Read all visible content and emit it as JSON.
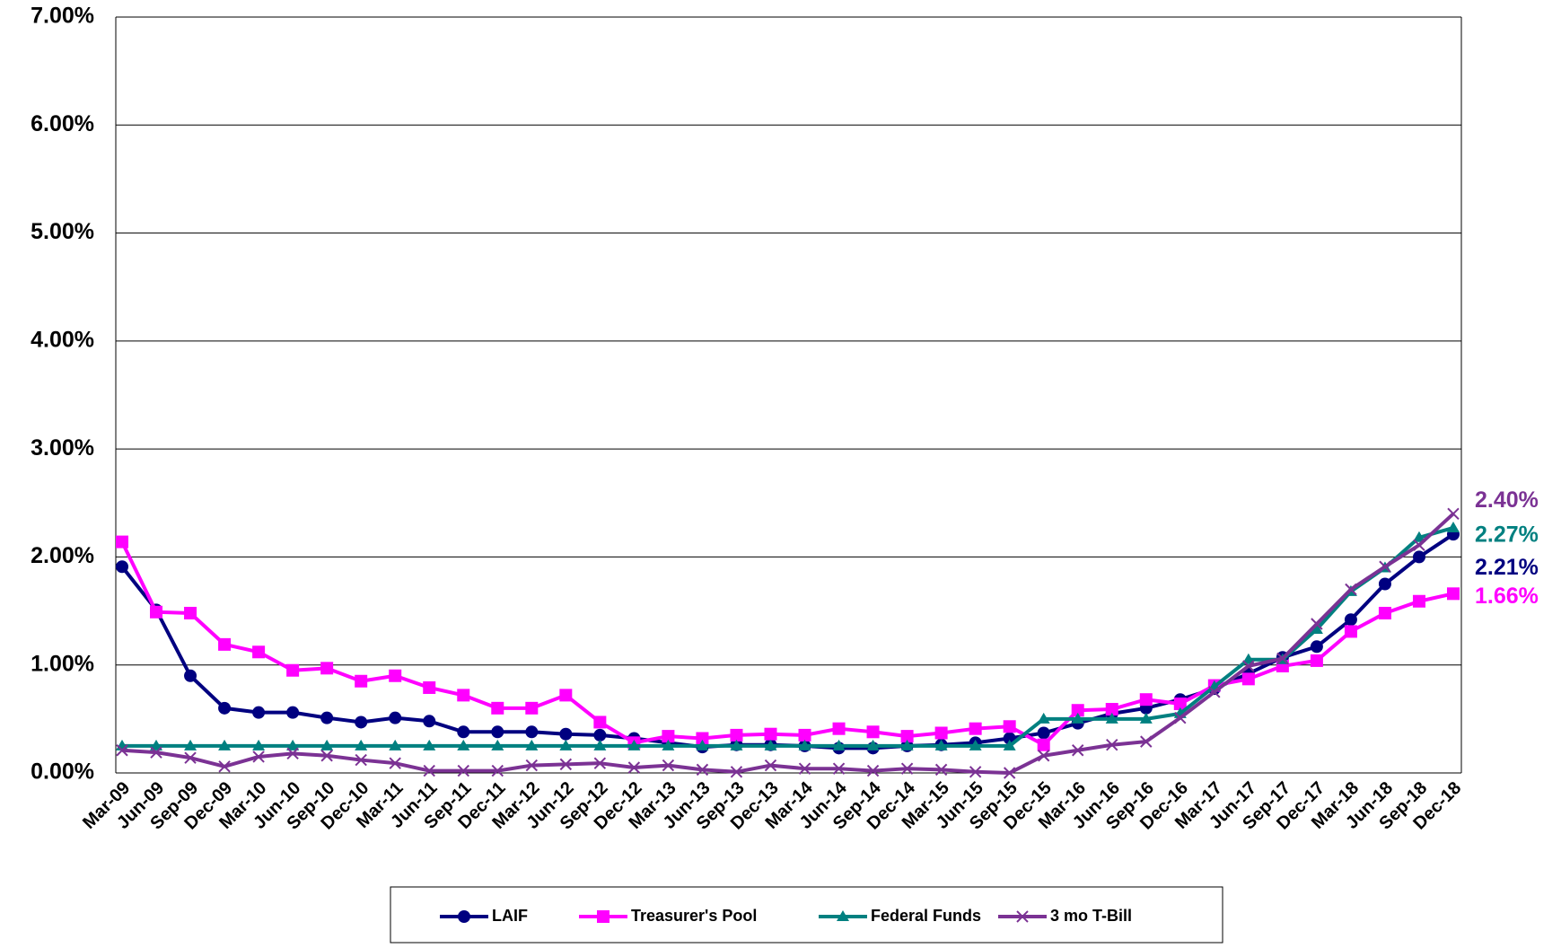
{
  "chart_data": {
    "type": "line",
    "categories": [
      "Mar-09",
      "Jun-09",
      "Sep-09",
      "Dec-09",
      "Mar-10",
      "Jun-10",
      "Sep-10",
      "Dec-10",
      "Mar-11",
      "Jun-11",
      "Sep-11",
      "Dec-11",
      "Mar-12",
      "Jun-12",
      "Sep-12",
      "Dec-12",
      "Mar-13",
      "Jun-13",
      "Sep-13",
      "Dec-13",
      "Mar-14",
      "Jun-14",
      "Sep-14",
      "Dec-14",
      "Mar-15",
      "Jun-15",
      "Sep-15",
      "Dec-15",
      "Mar-16",
      "Jun-16",
      "Sep-16",
      "Dec-16",
      "Mar-17",
      "Jun-17",
      "Sep-17",
      "Dec-17",
      "Mar-18",
      "Jun-18",
      "Sep-18",
      "Dec-18"
    ],
    "series": [
      {
        "name": "LAIF",
        "color": "#000080",
        "marker": "circle",
        "end_label": "2.21%",
        "values": [
          1.91,
          1.51,
          0.9,
          0.6,
          0.56,
          0.56,
          0.51,
          0.47,
          0.51,
          0.48,
          0.38,
          0.38,
          0.38,
          0.36,
          0.35,
          0.32,
          0.28,
          0.24,
          0.26,
          0.26,
          0.25,
          0.23,
          0.23,
          0.25,
          0.26,
          0.28,
          0.32,
          0.37,
          0.46,
          0.55,
          0.6,
          0.68,
          0.78,
          0.92,
          1.07,
          1.17,
          1.42,
          1.75,
          2.0,
          2.21
        ]
      },
      {
        "name": "Treasurer's Pool",
        "color": "#ff00ff",
        "marker": "square",
        "end_label": "1.66%",
        "values": [
          2.14,
          1.49,
          1.48,
          1.19,
          1.12,
          0.95,
          0.97,
          0.85,
          0.9,
          0.79,
          0.72,
          0.6,
          0.6,
          0.72,
          0.47,
          0.28,
          0.34,
          0.32,
          0.35,
          0.36,
          0.35,
          0.41,
          0.38,
          0.34,
          0.37,
          0.41,
          0.43,
          0.26,
          0.58,
          0.59,
          0.68,
          0.64,
          0.81,
          0.87,
          0.99,
          1.04,
          1.31,
          1.48,
          1.59,
          1.66
        ]
      },
      {
        "name": "Federal Funds",
        "color": "#008080",
        "marker": "triangle",
        "end_label": "2.27%",
        "values": [
          0.25,
          0.25,
          0.25,
          0.25,
          0.25,
          0.25,
          0.25,
          0.25,
          0.25,
          0.25,
          0.25,
          0.25,
          0.25,
          0.25,
          0.25,
          0.25,
          0.25,
          0.25,
          0.25,
          0.25,
          0.25,
          0.25,
          0.25,
          0.25,
          0.25,
          0.25,
          0.25,
          0.5,
          0.5,
          0.5,
          0.5,
          0.55,
          0.8,
          1.05,
          1.05,
          1.33,
          1.68,
          1.9,
          2.18,
          2.27
        ]
      },
      {
        "name": "3 mo T-Bill",
        "color": "#7b3294",
        "marker": "x",
        "end_label": "2.40%",
        "values": [
          0.21,
          0.19,
          0.14,
          0.06,
          0.15,
          0.18,
          0.16,
          0.12,
          0.09,
          0.02,
          0.02,
          0.02,
          0.07,
          0.08,
          0.09,
          0.05,
          0.07,
          0.03,
          0.01,
          0.07,
          0.04,
          0.04,
          0.02,
          0.04,
          0.03,
          0.01,
          0.0,
          0.16,
          0.21,
          0.26,
          0.29,
          0.51,
          0.75,
          0.99,
          1.06,
          1.38,
          1.7,
          1.91,
          2.11,
          2.4
        ]
      }
    ],
    "ylim": [
      0,
      7
    ],
    "yticks": [
      {
        "value": 0,
        "label": "0.00%"
      },
      {
        "value": 1,
        "label": "1.00%"
      },
      {
        "value": 2,
        "label": "2.00%"
      },
      {
        "value": 3,
        "label": "3.00%"
      },
      {
        "value": 4,
        "label": "4.00%"
      },
      {
        "value": 5,
        "label": "5.00%"
      },
      {
        "value": 6,
        "label": "6.00%"
      },
      {
        "value": 7,
        "label": "7.00%"
      }
    ],
    "grid": true
  }
}
